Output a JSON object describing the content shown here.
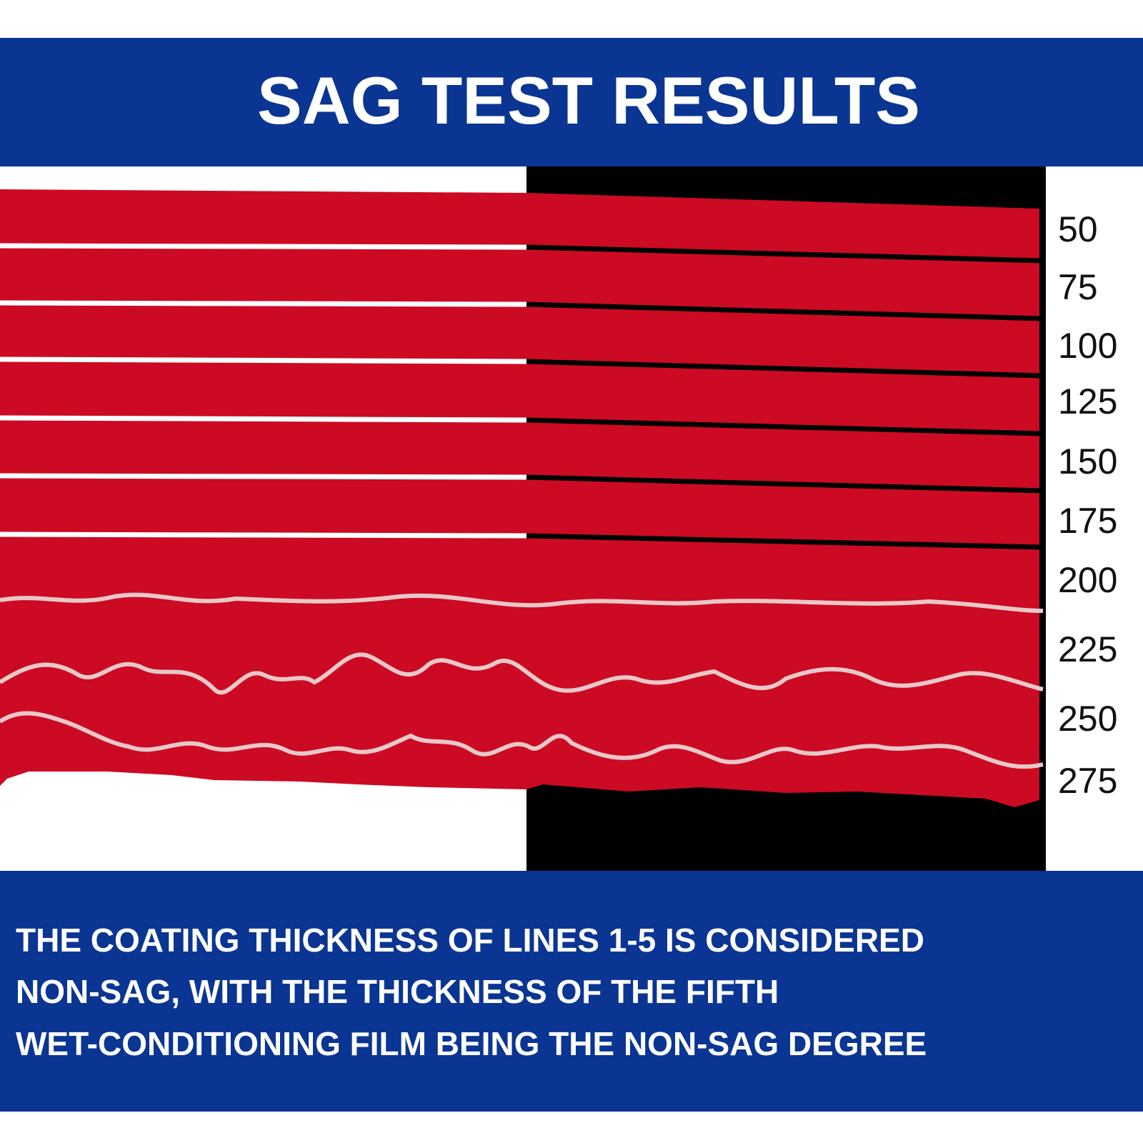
{
  "header": {
    "title": "SAG TEST RESULTS"
  },
  "thickness_labels": [
    "50",
    "75",
    "100",
    "125",
    "150",
    "175",
    "200",
    "225",
    "250",
    "275"
  ],
  "caption": {
    "lines": [
      "THE COATING THICKNESS OF LINES 1-5 IS CONSIDERED",
      "NON-SAG, WITH THE THICKNESS OF THE FIFTH",
      "WET-CONDITIONING FILM BEING THE NON-SAG DEGREE"
    ]
  }
}
